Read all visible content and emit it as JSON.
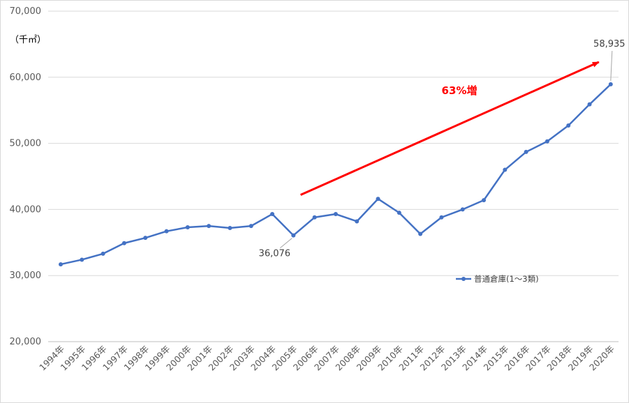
{
  "chart_data": {
    "type": "line",
    "title": "",
    "xlabel": "",
    "ylabel": "（千㎡）",
    "ylim": [
      20000,
      70000
    ],
    "yticks": [
      20000,
      30000,
      40000,
      50000,
      60000,
      70000
    ],
    "ytick_labels": [
      "20,000",
      "30,000",
      "40,000",
      "50,000",
      "60,000",
      "70,000"
    ],
    "grid": true,
    "legend_position": "bottom-right",
    "categories": [
      "1994年",
      "1995年",
      "1996年",
      "1997年",
      "1998年",
      "1999年",
      "2000年",
      "2001年",
      "2002年",
      "2003年",
      "2004年",
      "2005年",
      "2006年",
      "2007年",
      "2008年",
      "2009年",
      "2010年",
      "2011年",
      "2012年",
      "2013年",
      "2014年",
      "2015年",
      "2016年",
      "2017年",
      "2018年",
      "2019年",
      "2020年"
    ],
    "series": [
      {
        "name": "普通倉庫(1～3類)",
        "color": "#4472c4",
        "values": [
          31700,
          32400,
          33300,
          34900,
          35700,
          36700,
          37300,
          37500,
          37200,
          37500,
          39300,
          36076,
          38800,
          39300,
          38200,
          41600,
          39500,
          36300,
          38800,
          40000,
          41400,
          46000,
          48700,
          50300,
          52700,
          55900,
          58935
        ]
      }
    ],
    "data_labels": [
      {
        "category": "2005年",
        "text": "36,076"
      },
      {
        "category": "2020年",
        "text": "58,935"
      }
    ],
    "annotation": {
      "text": "63%増",
      "color": "#ff0000",
      "arrow_from": {
        "category": "2006年",
        "value": 42200
      },
      "arrow_to": {
        "category": "2020年",
        "value": 62300
      }
    }
  }
}
